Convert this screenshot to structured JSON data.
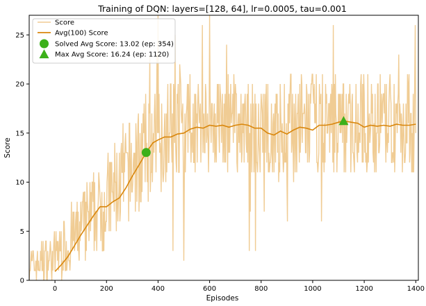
{
  "chart_data": {
    "type": "line",
    "title": "Training of DQN: layers=[128, 64], lr=0.0005, tau=0.001",
    "xlabel": "Episodes",
    "ylabel": "Score",
    "xlim": [
      -100,
      1410
    ],
    "ylim": [
      0,
      27
    ],
    "xticks": [
      0,
      200,
      400,
      600,
      800,
      1000,
      1200,
      1400
    ],
    "yticks": [
      0,
      5,
      10,
      15,
      20,
      25
    ],
    "legend_position": "top-left",
    "grid": false,
    "colors": {
      "score": "#f0cc94",
      "avg": "#d9860b",
      "marker": "#3cb01a"
    },
    "series": [
      {
        "name": "Score",
        "style": "raw",
        "note_points": "noisy per-episode scores, mostly 0-4 early, rising to ~10-20 band after ep 400, with spikes up to ~27",
        "episodes": [
          -100,
          1400
        ],
        "noise_envelope": [
          [
            -100,
            0,
            3
          ],
          [
            0,
            0,
            5
          ],
          [
            100,
            1,
            9
          ],
          [
            200,
            3,
            13
          ],
          [
            300,
            6,
            17
          ],
          [
            400,
            9,
            20
          ],
          [
            500,
            11,
            21
          ],
          [
            600,
            11,
            21
          ],
          [
            700,
            11,
            21
          ],
          [
            800,
            10,
            20
          ],
          [
            900,
            10,
            21
          ],
          [
            1000,
            11,
            21
          ],
          [
            1100,
            11,
            21
          ],
          [
            1200,
            11,
            21
          ],
          [
            1300,
            11,
            21
          ],
          [
            1400,
            11,
            21
          ]
        ]
      },
      {
        "name": "Avg(100) Score",
        "x": [
          0,
          25,
          50,
          75,
          100,
          125,
          150,
          175,
          200,
          225,
          250,
          275,
          300,
          325,
          354,
          380,
          400,
          425,
          450,
          475,
          500,
          525,
          550,
          575,
          600,
          625,
          650,
          675,
          700,
          725,
          750,
          775,
          800,
          825,
          850,
          875,
          900,
          925,
          950,
          975,
          1000,
          1025,
          1050,
          1075,
          1100,
          1120,
          1150,
          1175,
          1200,
          1225,
          1250,
          1275,
          1300,
          1325,
          1350,
          1375,
          1400
        ],
        "values": [
          0.9,
          1.6,
          2.4,
          3.5,
          4.6,
          5.6,
          6.6,
          7.5,
          7.5,
          8.0,
          8.4,
          9.4,
          10.6,
          11.7,
          13.02,
          14.0,
          14.3,
          14.6,
          14.6,
          14.9,
          15.0,
          15.4,
          15.6,
          15.5,
          15.8,
          15.7,
          15.8,
          15.6,
          15.8,
          15.9,
          15.8,
          15.5,
          15.5,
          15.0,
          14.8,
          15.2,
          14.9,
          15.3,
          15.6,
          15.5,
          15.3,
          15.8,
          15.8,
          15.9,
          16.1,
          16.24,
          16.1,
          16.0,
          15.6,
          15.8,
          15.7,
          15.8,
          15.7,
          15.9,
          15.8,
          15.8,
          15.9
        ]
      }
    ],
    "markers": [
      {
        "name": "Solved Avg Score: 13.02 (ep: 354)",
        "shape": "circle",
        "x": 354,
        "y": 13.02
      },
      {
        "name": "Max Avg Score: 16.24 (ep: 1120)",
        "shape": "triangle",
        "x": 1120,
        "y": 16.24
      }
    ],
    "legend": [
      "Score",
      "Avg(100) Score",
      "Solved Avg Score: 13.02 (ep: 354)",
      "Max Avg Score: 16.24 (ep: 1120)"
    ]
  }
}
